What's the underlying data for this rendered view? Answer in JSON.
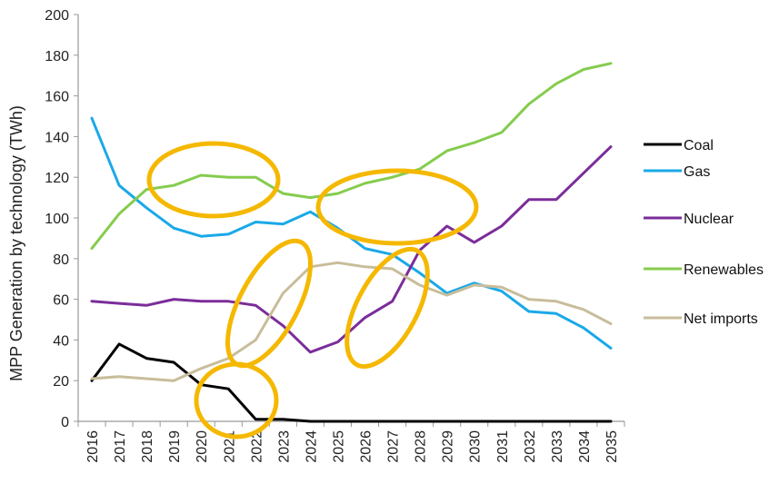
{
  "chart_data": {
    "type": "line",
    "title": "",
    "xlabel": "",
    "ylabel": "MPP Generation by technology (TWh)",
    "ylim": [
      0,
      200
    ],
    "yticks": [
      0,
      20,
      40,
      60,
      80,
      100,
      120,
      140,
      160,
      180,
      200
    ],
    "grid": false,
    "legend_position": "right",
    "categories": [
      "2016",
      "2017",
      "2018",
      "2019",
      "2020",
      "2021",
      "2022",
      "2023",
      "2024",
      "2025",
      "2026",
      "2027",
      "2028",
      "2029",
      "2030",
      "2031",
      "2032",
      "2033",
      "2034",
      "2035"
    ],
    "series": [
      {
        "name": "Coal",
        "color": "#000000",
        "values": [
          20,
          38,
          31,
          29,
          18,
          16,
          1,
          1,
          0,
          0,
          0,
          0,
          0,
          0,
          0,
          0,
          0,
          0,
          0,
          0
        ]
      },
      {
        "name": "Gas",
        "color": "#1aa9e8",
        "values": [
          149,
          116,
          105,
          95,
          91,
          92,
          98,
          97,
          103,
          95,
          85,
          82,
          73,
          63,
          68,
          64,
          54,
          53,
          46,
          36
        ]
      },
      {
        "name": "Nuclear",
        "color": "#7b2d9a",
        "values": [
          59,
          58,
          57,
          60,
          59,
          59,
          57,
          47,
          34,
          39,
          51,
          59,
          84,
          96,
          88,
          96,
          109,
          109,
          122,
          135
        ]
      },
      {
        "name": "Renewables",
        "color": "#85cc4e",
        "values": [
          85,
          102,
          114,
          116,
          121,
          120,
          120,
          112,
          110,
          112,
          117,
          120,
          124,
          133,
          137,
          142,
          156,
          166,
          173,
          176
        ]
      },
      {
        "name": "Net imports",
        "color": "#c8bd9b",
        "values": [
          21,
          22,
          21,
          20,
          26,
          31,
          40,
          63,
          76,
          78,
          76,
          75,
          67,
          62,
          67,
          66,
          60,
          59,
          55,
          48
        ]
      }
    ],
    "annotations": {
      "shape": "ellipse",
      "color": "#f5b800",
      "count": 5
    }
  }
}
